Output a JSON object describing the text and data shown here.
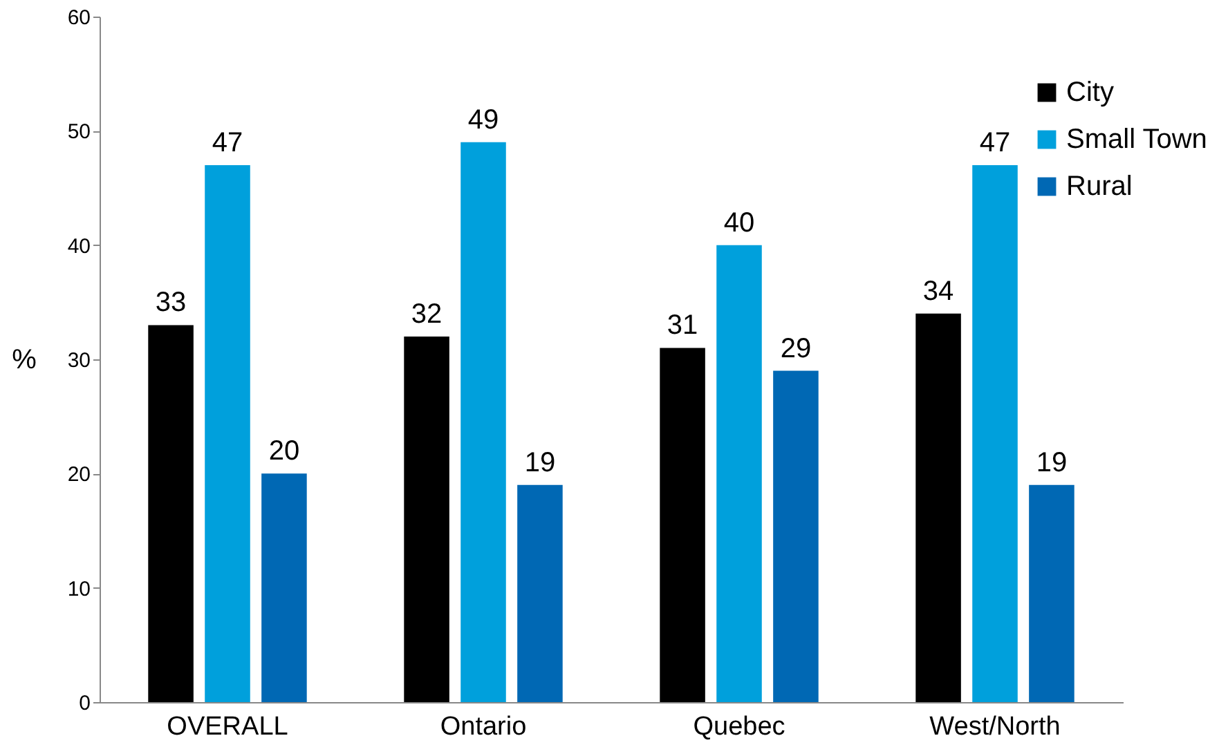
{
  "chart_data": {
    "type": "bar",
    "ylabel": "%",
    "categories": [
      "OVERALL",
      "Ontario",
      "Quebec",
      "West/North"
    ],
    "series": [
      {
        "name": "City",
        "color": "#000000",
        "values": [
          33,
          32,
          31,
          34
        ]
      },
      {
        "name": "Small Town",
        "color": "#00a0dc",
        "values": [
          47,
          49,
          40,
          47
        ]
      },
      {
        "name": "Rural",
        "color": "#0068b4",
        "values": [
          20,
          19,
          29,
          19
        ]
      }
    ],
    "ylim": [
      0,
      60
    ],
    "yticks": [
      0,
      10,
      20,
      30,
      40,
      50,
      60
    ],
    "data_labels": true,
    "legend": "top right",
    "grid": false
  }
}
